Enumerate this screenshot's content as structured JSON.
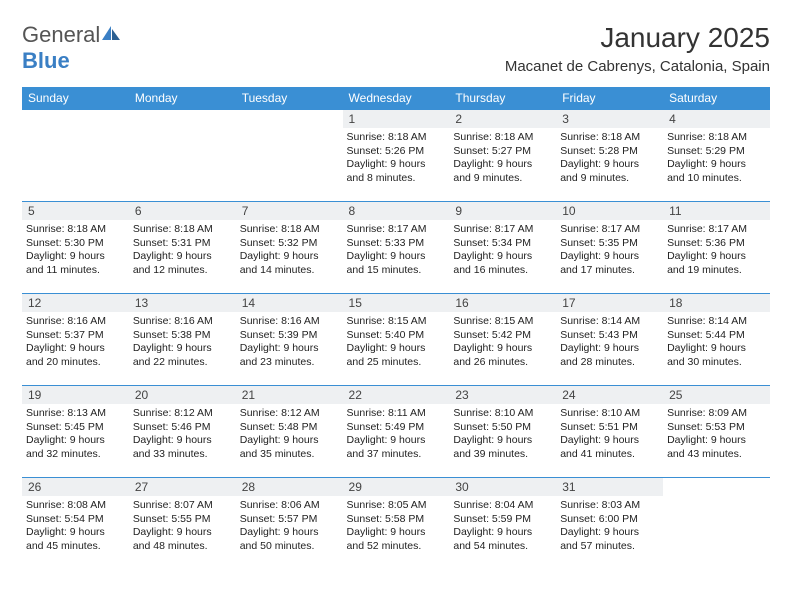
{
  "brand": {
    "text1": "General",
    "text2": "Blue"
  },
  "header": {
    "month_title": "January 2025",
    "location": "Macanet de Cabrenys, Catalonia, Spain"
  },
  "day_names": [
    "Sunday",
    "Monday",
    "Tuesday",
    "Wednesday",
    "Thursday",
    "Friday",
    "Saturday"
  ],
  "colors": {
    "header_bg": "#3a8fd4",
    "header_fg": "#ffffff",
    "daynum_bg": "#eef0f2",
    "border": "#3a8fd4",
    "brand_blue": "#3a7fc4",
    "text": "#222222"
  },
  "weeks": [
    [
      null,
      null,
      null,
      {
        "num": "1",
        "sunrise": "8:18 AM",
        "sunset": "5:26 PM",
        "daylight": "9 hours and 8 minutes."
      },
      {
        "num": "2",
        "sunrise": "8:18 AM",
        "sunset": "5:27 PM",
        "daylight": "9 hours and 9 minutes."
      },
      {
        "num": "3",
        "sunrise": "8:18 AM",
        "sunset": "5:28 PM",
        "daylight": "9 hours and 9 minutes."
      },
      {
        "num": "4",
        "sunrise": "8:18 AM",
        "sunset": "5:29 PM",
        "daylight": "9 hours and 10 minutes."
      }
    ],
    [
      {
        "num": "5",
        "sunrise": "8:18 AM",
        "sunset": "5:30 PM",
        "daylight": "9 hours and 11 minutes."
      },
      {
        "num": "6",
        "sunrise": "8:18 AM",
        "sunset": "5:31 PM",
        "daylight": "9 hours and 12 minutes."
      },
      {
        "num": "7",
        "sunrise": "8:18 AM",
        "sunset": "5:32 PM",
        "daylight": "9 hours and 14 minutes."
      },
      {
        "num": "8",
        "sunrise": "8:17 AM",
        "sunset": "5:33 PM",
        "daylight": "9 hours and 15 minutes."
      },
      {
        "num": "9",
        "sunrise": "8:17 AM",
        "sunset": "5:34 PM",
        "daylight": "9 hours and 16 minutes."
      },
      {
        "num": "10",
        "sunrise": "8:17 AM",
        "sunset": "5:35 PM",
        "daylight": "9 hours and 17 minutes."
      },
      {
        "num": "11",
        "sunrise": "8:17 AM",
        "sunset": "5:36 PM",
        "daylight": "9 hours and 19 minutes."
      }
    ],
    [
      {
        "num": "12",
        "sunrise": "8:16 AM",
        "sunset": "5:37 PM",
        "daylight": "9 hours and 20 minutes."
      },
      {
        "num": "13",
        "sunrise": "8:16 AM",
        "sunset": "5:38 PM",
        "daylight": "9 hours and 22 minutes."
      },
      {
        "num": "14",
        "sunrise": "8:16 AM",
        "sunset": "5:39 PM",
        "daylight": "9 hours and 23 minutes."
      },
      {
        "num": "15",
        "sunrise": "8:15 AM",
        "sunset": "5:40 PM",
        "daylight": "9 hours and 25 minutes."
      },
      {
        "num": "16",
        "sunrise": "8:15 AM",
        "sunset": "5:42 PM",
        "daylight": "9 hours and 26 minutes."
      },
      {
        "num": "17",
        "sunrise": "8:14 AM",
        "sunset": "5:43 PM",
        "daylight": "9 hours and 28 minutes."
      },
      {
        "num": "18",
        "sunrise": "8:14 AM",
        "sunset": "5:44 PM",
        "daylight": "9 hours and 30 minutes."
      }
    ],
    [
      {
        "num": "19",
        "sunrise": "8:13 AM",
        "sunset": "5:45 PM",
        "daylight": "9 hours and 32 minutes."
      },
      {
        "num": "20",
        "sunrise": "8:12 AM",
        "sunset": "5:46 PM",
        "daylight": "9 hours and 33 minutes."
      },
      {
        "num": "21",
        "sunrise": "8:12 AM",
        "sunset": "5:48 PM",
        "daylight": "9 hours and 35 minutes."
      },
      {
        "num": "22",
        "sunrise": "8:11 AM",
        "sunset": "5:49 PM",
        "daylight": "9 hours and 37 minutes."
      },
      {
        "num": "23",
        "sunrise": "8:10 AM",
        "sunset": "5:50 PM",
        "daylight": "9 hours and 39 minutes."
      },
      {
        "num": "24",
        "sunrise": "8:10 AM",
        "sunset": "5:51 PM",
        "daylight": "9 hours and 41 minutes."
      },
      {
        "num": "25",
        "sunrise": "8:09 AM",
        "sunset": "5:53 PM",
        "daylight": "9 hours and 43 minutes."
      }
    ],
    [
      {
        "num": "26",
        "sunrise": "8:08 AM",
        "sunset": "5:54 PM",
        "daylight": "9 hours and 45 minutes."
      },
      {
        "num": "27",
        "sunrise": "8:07 AM",
        "sunset": "5:55 PM",
        "daylight": "9 hours and 48 minutes."
      },
      {
        "num": "28",
        "sunrise": "8:06 AM",
        "sunset": "5:57 PM",
        "daylight": "9 hours and 50 minutes."
      },
      {
        "num": "29",
        "sunrise": "8:05 AM",
        "sunset": "5:58 PM",
        "daylight": "9 hours and 52 minutes."
      },
      {
        "num": "30",
        "sunrise": "8:04 AM",
        "sunset": "5:59 PM",
        "daylight": "9 hours and 54 minutes."
      },
      {
        "num": "31",
        "sunrise": "8:03 AM",
        "sunset": "6:00 PM",
        "daylight": "9 hours and 57 minutes."
      },
      null
    ]
  ],
  "labels": {
    "sunrise": "Sunrise: ",
    "sunset": "Sunset: ",
    "daylight": "Daylight: "
  }
}
